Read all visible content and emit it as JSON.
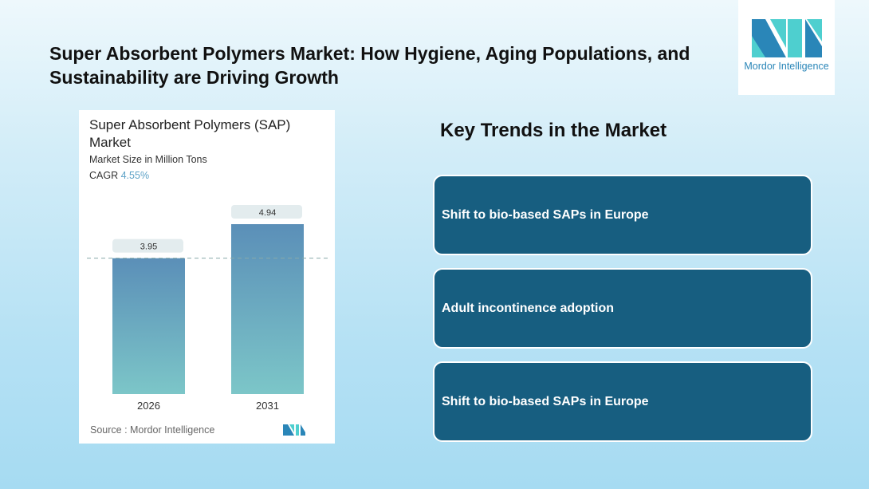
{
  "header": {
    "title": "Super Absorbent Polymers Market: How Hygiene, Aging Populations, and Sustainability are Driving Growth"
  },
  "logo": {
    "text": "Mordor Intelligence",
    "colors": [
      "#2a86b8",
      "#4ecfcf"
    ]
  },
  "chart_data": {
    "type": "bar",
    "title": "Super Absorbent Polymers (SAP) Market",
    "subtitle": "Market Size in Million Tons",
    "cagr_label": "CAGR",
    "cagr_value": "4.55%",
    "categories": [
      "2026",
      "2031"
    ],
    "values": [
      3.95,
      4.94
    ],
    "value_labels": [
      "3.95",
      "4.94"
    ],
    "ylim": [
      0,
      4.94
    ],
    "grid": false,
    "reference_line": "dashed at 2026 value",
    "bar_gradient": [
      "#5b8fb8",
      "#7cc6c8"
    ],
    "source": "Source :  Mordor Intelligence"
  },
  "trends": {
    "heading": "Key Trends in the Market",
    "items": [
      "Shift to bio-based SAPs in Europe",
      "Adult incontinence adoption",
      "Shift to bio-based SAPs in Europe"
    ],
    "box_color": "#175e80"
  }
}
